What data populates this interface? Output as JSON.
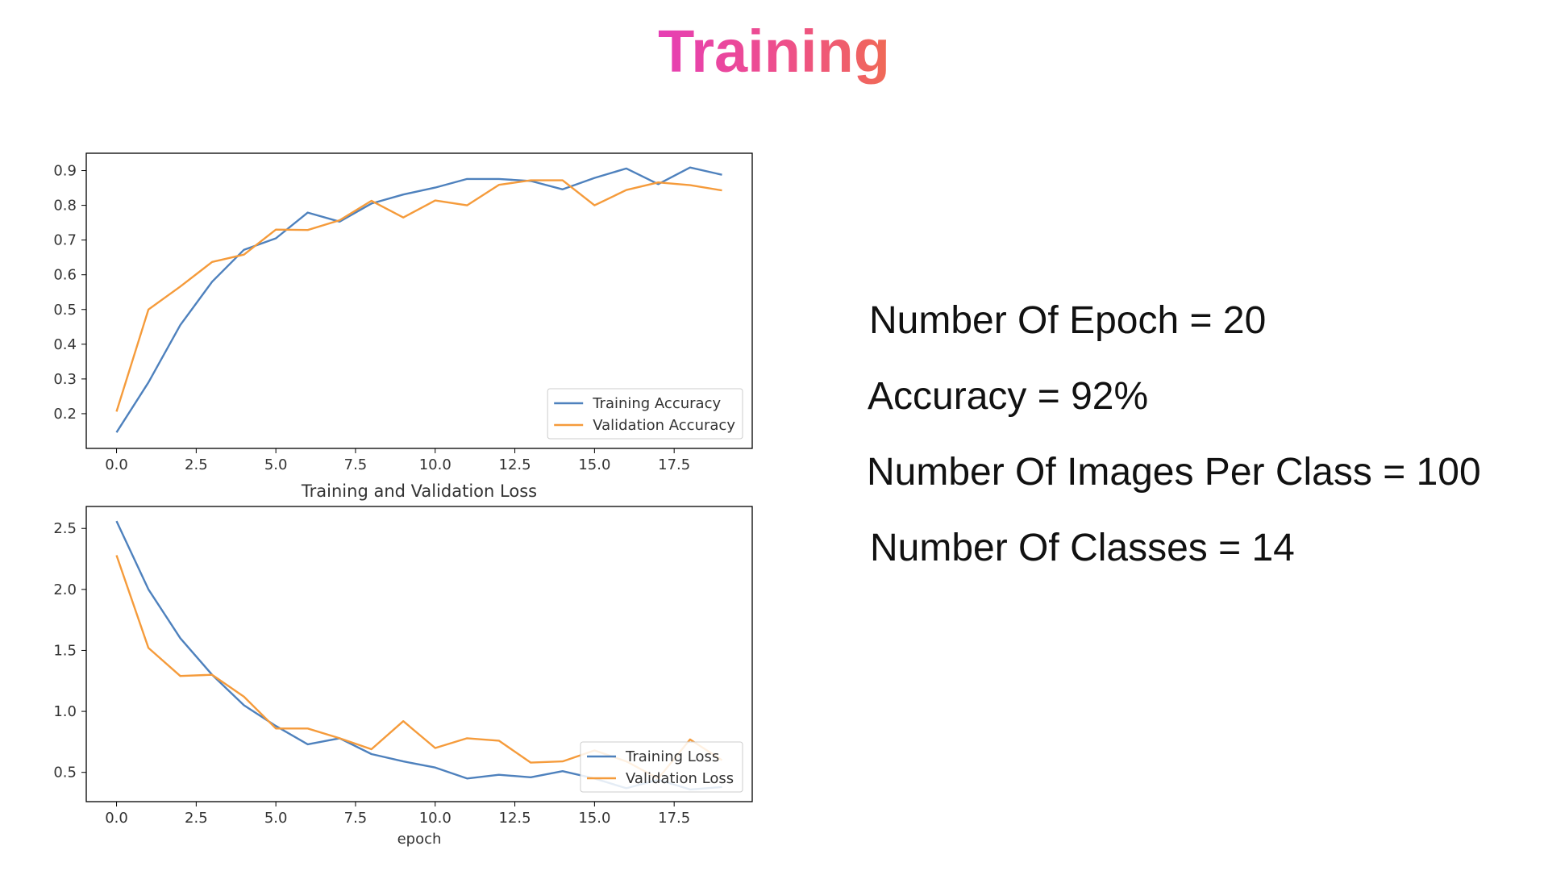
{
  "slide": {
    "title": "Training",
    "title_gradient": [
      "#e63fb4",
      "#f06a55"
    ]
  },
  "stats": [
    "Number Of Epoch = 20",
    "Accuracy = 92%",
    "Number Of Images Per Class = 100",
    "Number Of Classes = 14"
  ],
  "chart_data": [
    {
      "type": "line",
      "title": "",
      "xlabel": "",
      "ylabel": "",
      "xlim": [
        -0.95,
        19.95
      ],
      "ylim": [
        0.1,
        0.95
      ],
      "xticks": [
        "0.0",
        "2.5",
        "5.0",
        "7.5",
        "10.0",
        "12.5",
        "15.0",
        "17.5"
      ],
      "xtick_values": [
        0,
        2.5,
        5,
        7.5,
        10,
        12.5,
        15,
        17.5
      ],
      "yticks": [
        "0.2",
        "0.3",
        "0.4",
        "0.5",
        "0.6",
        "0.7",
        "0.8",
        "0.9"
      ],
      "ytick_values": [
        0.2,
        0.3,
        0.4,
        0.5,
        0.6,
        0.7,
        0.8,
        0.9
      ],
      "grid": false,
      "legend": "lower-right",
      "x": [
        0,
        1,
        2,
        3,
        4,
        5,
        6,
        7,
        8,
        9,
        10,
        11,
        12,
        13,
        14,
        15,
        16,
        17,
        18,
        19
      ],
      "series": [
        {
          "name": "Training Accuracy",
          "color": "#4e81bd",
          "values": [
            0.146,
            0.29,
            0.455,
            0.58,
            0.672,
            0.705,
            0.779,
            0.753,
            0.805,
            0.831,
            0.851,
            0.876,
            0.876,
            0.87,
            0.846,
            0.879,
            0.906,
            0.861,
            0.909,
            0.888
          ]
        },
        {
          "name": "Validation Accuracy",
          "color": "#f59b3b",
          "values": [
            0.206,
            0.5,
            0.566,
            0.637,
            0.658,
            0.73,
            0.729,
            0.757,
            0.813,
            0.765,
            0.814,
            0.8,
            0.859,
            0.872,
            0.872,
            0.8,
            0.844,
            0.866,
            0.858,
            0.843
          ]
        }
      ]
    },
    {
      "type": "line",
      "title": "Training and Validation Loss",
      "xlabel": "epoch",
      "ylabel": "",
      "xlim": [
        -0.95,
        19.95
      ],
      "ylim": [
        0.26,
        2.68
      ],
      "xticks": [
        "0.0",
        "2.5",
        "5.0",
        "7.5",
        "10.0",
        "12.5",
        "15.0",
        "17.5"
      ],
      "xtick_values": [
        0,
        2.5,
        5,
        7.5,
        10,
        12.5,
        15,
        17.5
      ],
      "yticks": [
        "0.5",
        "1.0",
        "1.5",
        "2.0",
        "2.5"
      ],
      "ytick_values": [
        0.5,
        1.0,
        1.5,
        2.0,
        2.5
      ],
      "grid": false,
      "legend": "lower-right",
      "x": [
        0,
        1,
        2,
        3,
        4,
        5,
        6,
        7,
        8,
        9,
        10,
        11,
        12,
        13,
        14,
        15,
        16,
        17,
        18,
        19
      ],
      "series": [
        {
          "name": "Training Loss",
          "color": "#4e81bd",
          "values": [
            2.56,
            2.0,
            1.6,
            1.3,
            1.05,
            0.88,
            0.73,
            0.78,
            0.65,
            0.59,
            0.54,
            0.45,
            0.48,
            0.46,
            0.51,
            0.45,
            0.37,
            0.44,
            0.36,
            0.38
          ]
        },
        {
          "name": "Validation Loss",
          "color": "#f59b3b",
          "values": [
            2.28,
            1.52,
            1.29,
            1.3,
            1.12,
            0.86,
            0.86,
            0.78,
            0.69,
            0.92,
            0.7,
            0.78,
            0.76,
            0.58,
            0.59,
            0.68,
            0.59,
            0.45,
            0.77,
            0.6
          ]
        }
      ]
    }
  ]
}
